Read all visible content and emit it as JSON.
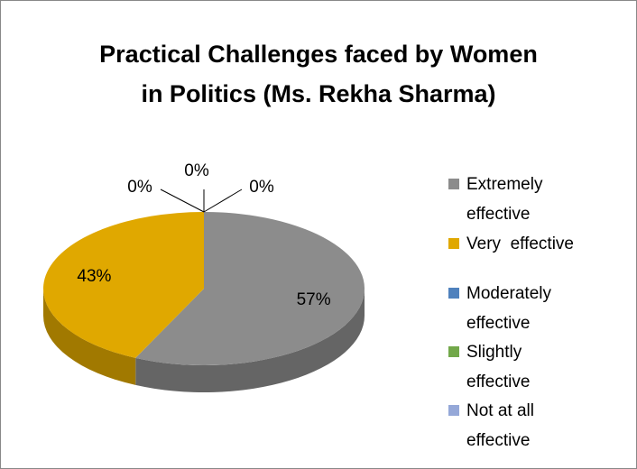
{
  "chart_data": {
    "type": "pie",
    "title": "Practical Challenges faced by Women in Politics (Ms. Rekha Sharma)",
    "categories": [
      "Extremely effective",
      "Very  effective",
      "Moderately effective",
      "Slightly effective",
      "Not at all effective"
    ],
    "values": [
      57,
      43,
      0,
      0,
      0
    ],
    "value_labels": [
      "57%",
      "43%",
      "0%",
      "0%",
      "0%"
    ],
    "colors": [
      "#8c8c8c",
      "#e0a800",
      "#4f81bd",
      "#72a84a",
      "#95a8d8"
    ],
    "legend": "right"
  }
}
